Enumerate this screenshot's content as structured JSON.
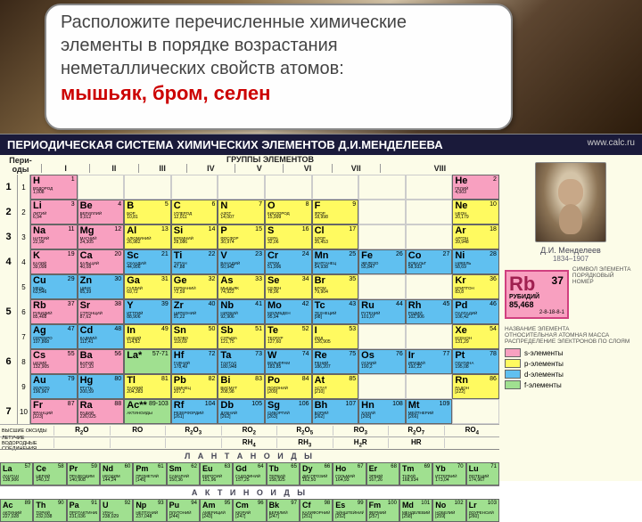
{
  "question": {
    "line1": "Расположите перечисленные химические",
    "line2": "элементы в порядке возрастания",
    "line3": "неметаллических свойств атомов:",
    "elements": "мышьяк, бром, селен"
  },
  "title": "ПЕРИОДИЧЕСКАЯ СИСТЕМА ХИМИЧЕСКИХ ЭЛЕМЕНТОВ Д.И.МЕНДЕЛЕЕВА",
  "url": "www.calc.ru",
  "groups_label": "ГРУППЫ  ЭЛЕМЕНТОВ",
  "periods_label": "Пери-оды",
  "rows_label": "Ряды",
  "roman": [
    "I",
    "II",
    "III",
    "IV",
    "V",
    "VI",
    "VII",
    "VIII"
  ],
  "sub_ab": [
    "а",
    "б",
    "а",
    "б",
    "а",
    "б",
    "а",
    "б",
    "а",
    "б",
    "а",
    "б",
    "а",
    "б",
    "а",
    "б"
  ],
  "rows": [
    {
      "period": "1",
      "row": "1",
      "cells": [
        {
          "t": "s",
          "sym": "H",
          "num": "1",
          "name": "ВОДОРОД",
          "mass": "1,008"
        },
        {
          "t": "e"
        },
        {
          "t": "e"
        },
        {
          "t": "e"
        },
        {
          "t": "e"
        },
        {
          "t": "e"
        },
        {
          "t": "e"
        },
        {
          "t": "e"
        },
        {
          "t": "e"
        },
        {
          "t": "s",
          "sym": "He",
          "num": "2",
          "name": "ГЕЛИЙ",
          "mass": "4,003"
        }
      ]
    },
    {
      "period": "2",
      "row": "2",
      "cells": [
        {
          "t": "s",
          "sym": "Li",
          "num": "3",
          "name": "ЛИТИЙ",
          "mass": "6,94"
        },
        {
          "t": "s",
          "sym": "Be",
          "num": "4",
          "name": "БЕРИЛЛИЙ",
          "mass": "9,012"
        },
        {
          "t": "p",
          "sym": "B",
          "num": "5",
          "name": "БОР",
          "mass": "10,81"
        },
        {
          "t": "p",
          "sym": "C",
          "num": "6",
          "name": "УГЛЕРОД",
          "mass": "12,011"
        },
        {
          "t": "p",
          "sym": "N",
          "num": "7",
          "name": "АЗОТ",
          "mass": "14,007"
        },
        {
          "t": "p",
          "sym": "O",
          "num": "8",
          "name": "КИСЛОРОД",
          "mass": "15,999"
        },
        {
          "t": "p",
          "sym": "F",
          "num": "9",
          "name": "ФТОР",
          "mass": "18,998"
        },
        {
          "t": "e"
        },
        {
          "t": "e"
        },
        {
          "t": "p",
          "sym": "Ne",
          "num": "10",
          "name": "НЕОН",
          "mass": "20,179"
        }
      ]
    },
    {
      "period": "3",
      "row": "3",
      "cells": [
        {
          "t": "s",
          "sym": "Na",
          "num": "11",
          "name": "НАТРИЙ",
          "mass": "22,99"
        },
        {
          "t": "s",
          "sym": "Mg",
          "num": "12",
          "name": "МАГНИЙ",
          "mass": "24,305"
        },
        {
          "t": "p",
          "sym": "Al",
          "num": "13",
          "name": "АЛЮМИНИЙ",
          "mass": "26,982"
        },
        {
          "t": "p",
          "sym": "Si",
          "num": "14",
          "name": "КРЕМНИЙ",
          "mass": "28,086"
        },
        {
          "t": "p",
          "sym": "P",
          "num": "15",
          "name": "ФОСФОР",
          "mass": "30,974"
        },
        {
          "t": "p",
          "sym": "S",
          "num": "16",
          "name": "СЕРА",
          "mass": "32,06"
        },
        {
          "t": "p",
          "sym": "Cl",
          "num": "17",
          "name": "ХЛОР",
          "mass": "35,453"
        },
        {
          "t": "e"
        },
        {
          "t": "e"
        },
        {
          "t": "p",
          "sym": "Ar",
          "num": "18",
          "name": "АРГОН",
          "mass": "39,948"
        }
      ]
    },
    {
      "period": "4",
      "row": "4",
      "cells": [
        {
          "t": "s",
          "sym": "K",
          "num": "19",
          "name": "КАЛИЙ",
          "mass": "39,098"
        },
        {
          "t": "s",
          "sym": "Ca",
          "num": "20",
          "name": "КАЛЬЦИЙ",
          "mass": "40,08"
        },
        {
          "t": "d",
          "sym": "Sc",
          "num": "21",
          "name": "СКАНДИЙ",
          "mass": "44,956"
        },
        {
          "t": "d",
          "sym": "Ti",
          "num": "22",
          "name": "ТИТАН",
          "mass": "47,88"
        },
        {
          "t": "d",
          "sym": "V",
          "num": "23",
          "name": "ВАНАДИЙ",
          "mass": "50,942"
        },
        {
          "t": "d",
          "sym": "Cr",
          "num": "24",
          "name": "ХРОМ",
          "mass": "51,996"
        },
        {
          "t": "d",
          "sym": "Mn",
          "num": "25",
          "name": "МАРГАНЕЦ",
          "mass": "54,938"
        },
        {
          "t": "d",
          "sym": "Fe",
          "num": "26",
          "name": "ЖЕЛЕЗО",
          "mass": "55,847"
        },
        {
          "t": "d",
          "sym": "Co",
          "num": "27",
          "name": "КОБАЛЬТ",
          "mass": "58,933"
        },
        {
          "t": "d",
          "sym": "Ni",
          "num": "28",
          "name": "НИКЕЛЬ",
          "mass": "58,69"
        }
      ]
    },
    {
      "period": "",
      "row": "5",
      "cells": [
        {
          "t": "d",
          "sym": "Cu",
          "num": "29",
          "name": "МЕДЬ",
          "mass": "63,546"
        },
        {
          "t": "d",
          "sym": "Zn",
          "num": "30",
          "name": "ЦИНК",
          "mass": "65,39"
        },
        {
          "t": "p",
          "sym": "Ga",
          "num": "31",
          "name": "ГАЛЛИЙ",
          "mass": "69,72"
        },
        {
          "t": "p",
          "sym": "Ge",
          "num": "32",
          "name": "ГЕРМАНИЙ",
          "mass": "72,59"
        },
        {
          "t": "p",
          "sym": "As",
          "num": "33",
          "name": "МЫШЬЯК",
          "mass": "74,922"
        },
        {
          "t": "p",
          "sym": "Se",
          "num": "34",
          "name": "СЕЛЕН",
          "mass": "78,96"
        },
        {
          "t": "p",
          "sym": "Br",
          "num": "35",
          "name": "БРОМ",
          "mass": "79,904"
        },
        {
          "t": "e"
        },
        {
          "t": "e"
        },
        {
          "t": "p",
          "sym": "Kr",
          "num": "36",
          "name": "КРИПТОН",
          "mass": "83,8"
        }
      ]
    },
    {
      "period": "5",
      "row": "6",
      "cells": [
        {
          "t": "s",
          "sym": "Rb",
          "num": "37",
          "name": "РУБИДИЙ",
          "mass": "85,468"
        },
        {
          "t": "s",
          "sym": "Sr",
          "num": "38",
          "name": "СТРОНЦИЙ",
          "mass": "87,62"
        },
        {
          "t": "d",
          "sym": "Y",
          "num": "39",
          "name": "ИТТРИЙ",
          "mass": "88,906"
        },
        {
          "t": "d",
          "sym": "Zr",
          "num": "40",
          "name": "ЦИРКОНИЙ",
          "mass": "91,22"
        },
        {
          "t": "d",
          "sym": "Nb",
          "num": "41",
          "name": "НИОБИЙ",
          "mass": "92,906"
        },
        {
          "t": "d",
          "sym": "Mo",
          "num": "42",
          "name": "МОЛИБДЕН",
          "mass": "95,94"
        },
        {
          "t": "d",
          "sym": "Tc",
          "num": "43",
          "name": "ТЕХНЕЦИЙ",
          "mass": "[98]"
        },
        {
          "t": "d",
          "sym": "Ru",
          "num": "44",
          "name": "РУТЕНИЙ",
          "mass": "101,07"
        },
        {
          "t": "d",
          "sym": "Rh",
          "num": "45",
          "name": "РОДИЙ",
          "mass": "102,906"
        },
        {
          "t": "d",
          "sym": "Pd",
          "num": "46",
          "name": "ПАЛЛАДИЙ",
          "mass": "106,42"
        }
      ]
    },
    {
      "period": "",
      "row": "7",
      "cells": [
        {
          "t": "d",
          "sym": "Ag",
          "num": "47",
          "name": "СЕРЕБРО",
          "mass": "107,868"
        },
        {
          "t": "d",
          "sym": "Cd",
          "num": "48",
          "name": "КАДМИЙ",
          "mass": "112,41"
        },
        {
          "t": "p",
          "sym": "In",
          "num": "49",
          "name": "ИНДИЙ",
          "mass": "114,82"
        },
        {
          "t": "p",
          "sym": "Sn",
          "num": "50",
          "name": "ОЛОВО",
          "mass": "118,69"
        },
        {
          "t": "p",
          "sym": "Sb",
          "num": "51",
          "name": "СУРЬМА",
          "mass": "121,75"
        },
        {
          "t": "p",
          "sym": "Te",
          "num": "52",
          "name": "ТЕЛЛУР",
          "mass": "127,60"
        },
        {
          "t": "p",
          "sym": "I",
          "num": "53",
          "name": "ЙОД",
          "mass": "126,905"
        },
        {
          "t": "e"
        },
        {
          "t": "e"
        },
        {
          "t": "p",
          "sym": "Xe",
          "num": "54",
          "name": "КСЕНОН",
          "mass": "131,29"
        }
      ]
    },
    {
      "period": "6",
      "row": "8",
      "cells": [
        {
          "t": "s",
          "sym": "Cs",
          "num": "55",
          "name": "ЦЕЗИЙ",
          "mass": "132,905"
        },
        {
          "t": "s",
          "sym": "Ba",
          "num": "56",
          "name": "БАРИЙ",
          "mass": "137,33"
        },
        {
          "t": "f",
          "sym": "La*",
          "num": "57-71",
          "name": "",
          "mass": ""
        },
        {
          "t": "d",
          "sym": "Hf",
          "num": "72",
          "name": "ГАФНИЙ",
          "mass": "178,49"
        },
        {
          "t": "d",
          "sym": "Ta",
          "num": "73",
          "name": "ТАНТАЛ",
          "mass": "180,948"
        },
        {
          "t": "d",
          "sym": "W",
          "num": "74",
          "name": "ВОЛЬФРАМ",
          "mass": "183,85"
        },
        {
          "t": "d",
          "sym": "Re",
          "num": "75",
          "name": "РЕНИЙ",
          "mass": "186,207"
        },
        {
          "t": "d",
          "sym": "Os",
          "num": "76",
          "name": "ОСМИЙ",
          "mass": "190,2"
        },
        {
          "t": "d",
          "sym": "Ir",
          "num": "77",
          "name": "ИРИДИЙ",
          "mass": "192,22"
        },
        {
          "t": "d",
          "sym": "Pt",
          "num": "78",
          "name": "ПЛАТИНА",
          "mass": "195,08"
        }
      ]
    },
    {
      "period": "",
      "row": "9",
      "cells": [
        {
          "t": "d",
          "sym": "Au",
          "num": "79",
          "name": "ЗОЛОТО",
          "mass": "196,967"
        },
        {
          "t": "d",
          "sym": "Hg",
          "num": "80",
          "name": "РТУТЬ",
          "mass": "200,59"
        },
        {
          "t": "p",
          "sym": "Tl",
          "num": "81",
          "name": "ТАЛЛИЙ",
          "mass": "204,383"
        },
        {
          "t": "p",
          "sym": "Pb",
          "num": "82",
          "name": "СВИНЕЦ",
          "mass": "207,2"
        },
        {
          "t": "p",
          "sym": "Bi",
          "num": "83",
          "name": "ВИСМУТ",
          "mass": "208,98"
        },
        {
          "t": "p",
          "sym": "Po",
          "num": "84",
          "name": "ПОЛОНИЙ",
          "mass": "[209]"
        },
        {
          "t": "p",
          "sym": "At",
          "num": "85",
          "name": "АСТАТ",
          "mass": "[210]"
        },
        {
          "t": "e"
        },
        {
          "t": "e"
        },
        {
          "t": "p",
          "sym": "Rn",
          "num": "86",
          "name": "РАДОН",
          "mass": "[222]"
        }
      ]
    },
    {
      "period": "7",
      "row": "10",
      "cells": [
        {
          "t": "s",
          "sym": "Fr",
          "num": "87",
          "name": "ФРАНЦИЙ",
          "mass": "[223]"
        },
        {
          "t": "s",
          "sym": "Ra",
          "num": "88",
          "name": "РАДИЙ",
          "mass": "226,025"
        },
        {
          "t": "f",
          "sym": "Ac**",
          "num": "89-103",
          "name": "АКТИНОИДЫ",
          "mass": ""
        },
        {
          "t": "d",
          "sym": "Rf",
          "num": "104",
          "name": "РЕЗЕРФОРДИЙ",
          "mass": "[261]"
        },
        {
          "t": "d",
          "sym": "Db",
          "num": "105",
          "name": "ДУБНИЙ",
          "mass": "[262]"
        },
        {
          "t": "d",
          "sym": "Sg",
          "num": "106",
          "name": "СИБОРГИЙ",
          "mass": "[263]"
        },
        {
          "t": "d",
          "sym": "Bh",
          "num": "107",
          "name": "БОРИЙ",
          "mass": "[262]"
        },
        {
          "t": "d",
          "sym": "Hn",
          "num": "108",
          "name": "ХАНИЙ",
          "mass": "[265]"
        },
        {
          "t": "d",
          "sym": "Mt",
          "num": "109",
          "name": "МЕЙТНЕРИЙ",
          "mass": "[266]"
        },
        {
          "t": "e"
        }
      ]
    }
  ],
  "oxides": {
    "label": "ВЫСШИЕ ОКСИДЫ",
    "vals": [
      "R₂O",
      "RO",
      "R₂O₃",
      "RO₂",
      "R₂O₅",
      "RO₃",
      "R₂O₇",
      "RO₄"
    ]
  },
  "hydrides": {
    "label": "ЛЕТУЧИЕ ВОДОРОДНЫЕ СОЕДИНЕНИЯ",
    "vals": [
      "",
      "",
      "",
      "RH₄",
      "RH₃",
      "H₂R",
      "HR",
      ""
    ]
  },
  "lan_label": "Л А Н Т А Н О И Д Ы",
  "act_label": "А К Т И Н О И Д Ы",
  "lan": [
    {
      "sym": "La",
      "num": "57",
      "name": "ЛАНТАН",
      "mass": "138,906"
    },
    {
      "sym": "Ce",
      "num": "58",
      "name": "ЦЕРИЙ",
      "mass": "140,12"
    },
    {
      "sym": "Pr",
      "num": "59",
      "name": "ПРАЗЕОДИМ",
      "mass": "140,908"
    },
    {
      "sym": "Nd",
      "num": "60",
      "name": "НЕОДИМ",
      "mass": "144,24"
    },
    {
      "sym": "Pm",
      "num": "61",
      "name": "ПРОМЕТИЙ",
      "mass": "[145]"
    },
    {
      "sym": "Sm",
      "num": "62",
      "name": "САМАРИЙ",
      "mass": "150,36"
    },
    {
      "sym": "Eu",
      "num": "63",
      "name": "ЕВРОПИЙ",
      "mass": "151,96"
    },
    {
      "sym": "Gd",
      "num": "64",
      "name": "ГАДОЛИНИЙ",
      "mass": "157,25"
    },
    {
      "sym": "Tb",
      "num": "65",
      "name": "ТЕРБИЙ",
      "mass": "158,925"
    },
    {
      "sym": "Dy",
      "num": "66",
      "name": "ДИСПРОЗИЙ",
      "mass": "162,50"
    },
    {
      "sym": "Ho",
      "num": "67",
      "name": "ГОЛЬМИЙ",
      "mass": "164,93"
    },
    {
      "sym": "Er",
      "num": "68",
      "name": "ЭРБИЙ",
      "mass": "167,26"
    },
    {
      "sym": "Tm",
      "num": "69",
      "name": "ТУЛИЙ",
      "mass": "168,934"
    },
    {
      "sym": "Yb",
      "num": "70",
      "name": "ИТТЕРБИЙ",
      "mass": "173,04"
    },
    {
      "sym": "Lu",
      "num": "71",
      "name": "ЛЮТЕЦИЙ",
      "mass": "174,967"
    }
  ],
  "act": [
    {
      "sym": "Ac",
      "num": "89",
      "name": "АКТИНИЙ",
      "mass": "227,028"
    },
    {
      "sym": "Th",
      "num": "90",
      "name": "ТОРИЙ",
      "mass": "232,038"
    },
    {
      "sym": "Pa",
      "num": "91",
      "name": "ПРОТАКТИНИЙ",
      "mass": "231,036"
    },
    {
      "sym": "U",
      "num": "92",
      "name": "УРАН",
      "mass": "238,029"
    },
    {
      "sym": "Np",
      "num": "93",
      "name": "НЕПТУНИЙ",
      "mass": "237,048"
    },
    {
      "sym": "Pu",
      "num": "94",
      "name": "ПЛУТОНИЙ",
      "mass": "[244]"
    },
    {
      "sym": "Am",
      "num": "95",
      "name": "АМЕРИЦИЙ",
      "mass": "[243]"
    },
    {
      "sym": "Cm",
      "num": "96",
      "name": "КЮРИЙ",
      "mass": "[247]"
    },
    {
      "sym": "Bk",
      "num": "97",
      "name": "БЕРКЛИЙ",
      "mass": "[247]"
    },
    {
      "sym": "Cf",
      "num": "98",
      "name": "КАЛИФОРНИЙ",
      "mass": "[251]"
    },
    {
      "sym": "Es",
      "num": "99",
      "name": "ЭЙНШТЕЙНИЙ",
      "mass": "[252]"
    },
    {
      "sym": "Fm",
      "num": "100",
      "name": "ФЕРМИЙ",
      "mass": "[257]"
    },
    {
      "sym": "Md",
      "num": "101",
      "name": "МЕНДЕЛЕВИЙ",
      "mass": "[258]"
    },
    {
      "sym": "No",
      "num": "102",
      "name": "НОБЕЛИЙ",
      "mass": "[259]"
    },
    {
      "sym": "Lr",
      "num": "103",
      "name": "ЛОУРЕНСИЙ",
      "mass": "[260]"
    }
  ],
  "mendeleev_name": "Д.И. Менделеев",
  "mendeleev_years": "1834–1907",
  "big_rb": {
    "sym": "Rb",
    "num": "37",
    "name": "РУБИДИЙ",
    "mass": "85,468",
    "dist": "2-8-18-8-1"
  },
  "legend_labels": {
    "sym": "СИМВОЛ ЭЛЕМЕНТА",
    "num": "ПОРЯДКОВЫЙ НОМЕР",
    "name": "НАЗВАНИЕ ЭЛЕМЕНТА",
    "mass": "ОТНОСИТЕЛЬНАЯ АТОМНАЯ МАССА",
    "dist": "РАСПРЕДЕЛЕНИЕ ЭЛЕКТРОНОВ ПО СЛОЯМ"
  },
  "legend_colors": [
    {
      "cls": "s-el",
      "text": "s-элементы"
    },
    {
      "cls": "p-el",
      "text": "p-элементы"
    },
    {
      "cls": "d-el",
      "text": "d-элементы"
    },
    {
      "cls": "f-el",
      "text": "f-элементы"
    }
  ],
  "colors": {
    "s": "#f8a0c0",
    "p": "#fffa60",
    "d": "#60c0f0",
    "f": "#a0e090",
    "bg": "#fcfce8",
    "title_bg": "#1a1a3a",
    "question_red": "#c00"
  }
}
